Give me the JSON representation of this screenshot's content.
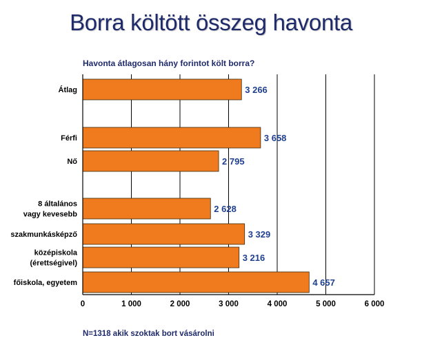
{
  "header": {
    "title": "Borra költött összeg havonta",
    "subtitle": "Havonta átlagosan hány forintot költ borra?"
  },
  "footer": {
    "note": "N=1318 akik szoktak bort vásárolni"
  },
  "colors": {
    "bar": "#F07A1E",
    "bar_edge": "#3a2a10",
    "title": "#1F2A6B",
    "value_label": "#1F3F8F"
  },
  "chart_data": {
    "type": "bar",
    "orientation": "horizontal",
    "categories": [
      "Átlag",
      "Férfi",
      "Nő",
      "8 általános vagy kevesebb",
      "szakmunkásképző",
      "középiskola (érettségivel)",
      "főiskola, egyetem"
    ],
    "values": [
      3266,
      3658,
      2795,
      2628,
      3329,
      3216,
      4657
    ],
    "value_labels": [
      "3 266",
      "3 658",
      "2 795",
      "2 628",
      "3 329",
      "3 216",
      "4 657"
    ],
    "xlim": [
      0,
      6000
    ],
    "xticks": [
      0,
      1000,
      2000,
      3000,
      4000,
      5000,
      6000
    ],
    "xtick_labels": [
      "0",
      "1 000",
      "2 000",
      "3 000",
      "4 000",
      "5 000",
      "6 000"
    ],
    "grid": "vertical",
    "legend": "none"
  }
}
